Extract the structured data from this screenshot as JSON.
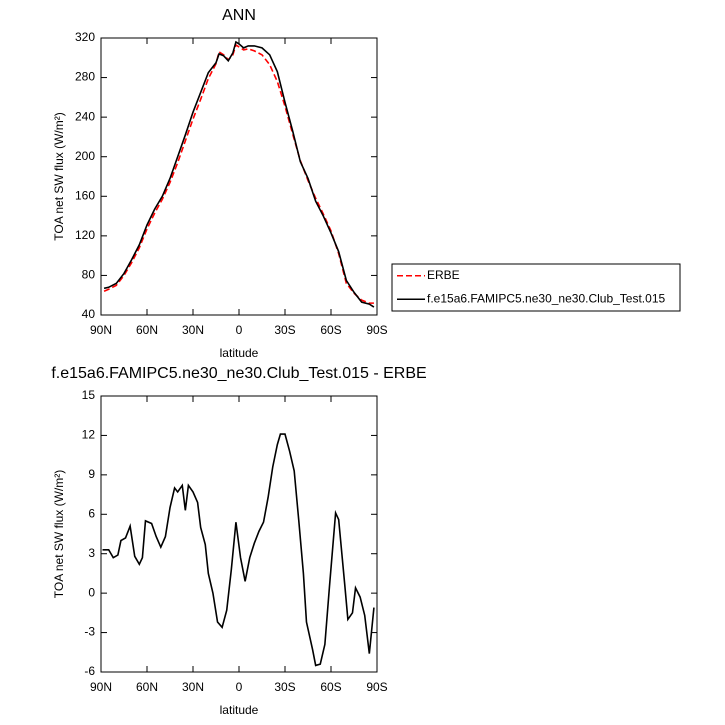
{
  "chart_data": [
    {
      "type": "line",
      "title": "ANN",
      "x_label": "latitude",
      "y_label": "TOA net SW flux (W/m²)",
      "x": [
        88,
        85,
        80,
        75,
        70,
        65,
        60,
        55,
        50,
        45,
        40,
        35,
        30,
        25,
        20,
        15,
        13,
        10,
        7,
        4,
        2,
        0,
        -3,
        -6,
        -10,
        -15,
        -20,
        -25,
        -30,
        -35,
        -40,
        -45,
        -50,
        -55,
        -60,
        -65,
        -70,
        -75,
        -80,
        -85,
        -88
      ],
      "series": [
        {
          "name": "ERBE",
          "color": "#ff0000",
          "dash": "dashed",
          "values": [
            64,
            66,
            70,
            80,
            93,
            108,
            127,
            143,
            157,
            174,
            194,
            216,
            238,
            258,
            279,
            294,
            306,
            303,
            298,
            303,
            313,
            311,
            308,
            309,
            307,
            303,
            293,
            276,
            251,
            223,
            196,
            176,
            158,
            142,
            125,
            102,
            72,
            62,
            55,
            52,
            52
          ]
        },
        {
          "name": "f.e15a6.FAMIPC5.ne30_ne30.Club_Test.015",
          "color": "#000000",
          "dash": "solid",
          "values": [
            67,
            68,
            72,
            82,
            96,
            111,
            131,
            147,
            160,
            178,
            200,
            222,
            245,
            265,
            285,
            295,
            304,
            302,
            297,
            305,
            316,
            314,
            310,
            312,
            312,
            310,
            303,
            286,
            255,
            226,
            195,
            178,
            155,
            140,
            123,
            104,
            75,
            63,
            53,
            51,
            48
          ]
        }
      ],
      "xlim": [
        90,
        -90
      ],
      "ylim": [
        40,
        320
      ],
      "xticks": [
        {
          "value": 90,
          "label": "90N"
        },
        {
          "value": 60,
          "label": "60N"
        },
        {
          "value": 30,
          "label": "30N"
        },
        0,
        {
          "value": -30,
          "label": "30S"
        },
        {
          "value": -60,
          "label": "60S"
        },
        {
          "value": -90,
          "label": "90S"
        }
      ],
      "yticks": [
        40,
        80,
        120,
        160,
        200,
        240,
        280,
        320
      ],
      "legend": "outside-right"
    },
    {
      "type": "line",
      "title": "f.e15a6.FAMIPC5.ne30_ne30.Club_Test.015 - ERBE",
      "x_label": "latitude",
      "y_label": "TOA net SW flux (W/m²)",
      "x": [
        89,
        85,
        82,
        79,
        77,
        74,
        71,
        68,
        65,
        63,
        61,
        57,
        54,
        51,
        48,
        45,
        42,
        40,
        37,
        35,
        33,
        30,
        27,
        25,
        22,
        20,
        17,
        14,
        11,
        8,
        5,
        2,
        -1,
        -4,
        -7,
        -10,
        -13,
        -16,
        -19,
        -22,
        -25,
        -27,
        -30,
        -33,
        -36,
        -39,
        -42,
        -44,
        -48,
        -50,
        -53,
        -56,
        -59,
        -63,
        -65,
        -69,
        -71,
        -74,
        -76,
        -79,
        -82,
        -85,
        -88
      ],
      "series": [
        {
          "color": "#000000",
          "values": [
            3.3,
            3.3,
            2.7,
            2.9,
            4.0,
            4.2,
            5.1,
            2.8,
            2.2,
            2.7,
            5.5,
            5.3,
            4.3,
            3.5,
            4.3,
            6.5,
            8.0,
            7.7,
            8.2,
            6.3,
            8.2,
            7.7,
            6.9,
            5.0,
            3.7,
            1.5,
            0,
            -2.2,
            -2.6,
            -1.3,
            1.8,
            5.4,
            2.7,
            0.9,
            2.7,
            3.8,
            4.7,
            5.4,
            7.3,
            9.6,
            11.3,
            12.1,
            12.1,
            10.8,
            9.3,
            5.5,
            1.5,
            -2.2,
            -4.3,
            -5.5,
            -5.4,
            -3.9,
            0.5,
            6.1,
            5.6,
            0.6,
            -2.0,
            -1.5,
            0.4,
            -0.3,
            -1.7,
            -4.6,
            -1.1
          ]
        }
      ],
      "xlim": [
        90,
        -90
      ],
      "ylim": [
        -6,
        15
      ],
      "xticks": [
        {
          "value": 90,
          "label": "90N"
        },
        {
          "value": 60,
          "label": "60N"
        },
        {
          "value": 30,
          "label": "30N"
        },
        0,
        {
          "value": -30,
          "label": "30S"
        },
        {
          "value": -60,
          "label": "60S"
        },
        {
          "value": -90,
          "label": "90S"
        }
      ],
      "yticks": [
        -6,
        -3,
        0,
        3,
        6,
        9,
        12,
        15
      ]
    }
  ]
}
